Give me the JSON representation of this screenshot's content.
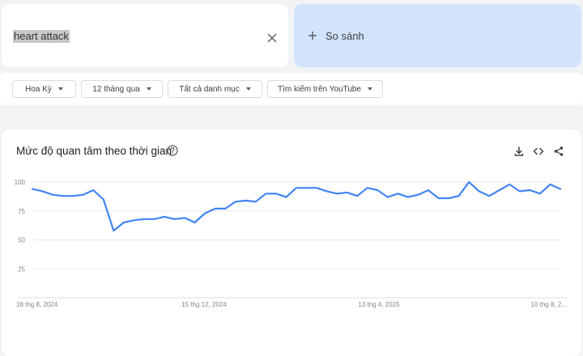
{
  "search": {
    "term": "heart attack"
  },
  "compare": {
    "label": "So sánh"
  },
  "filters": [
    {
      "label": "Hoa Kỳ"
    },
    {
      "label": "12 tháng qua"
    },
    {
      "label": "Tất cả danh mục"
    },
    {
      "label": "Tìm kiếm trên YouTube"
    }
  ],
  "chart_card": {
    "title": "Mức độ quan tâm theo thời gian",
    "icons": [
      "help-icon",
      "download-icon",
      "embed-code-icon",
      "share-icon"
    ]
  },
  "colors": {
    "series": "#4285f4",
    "compare_bg": "#d2e3fc"
  },
  "chart_data": {
    "type": "line",
    "title": "",
    "xlabel": "",
    "ylabel": "",
    "ylim": [
      0,
      100
    ],
    "y_ticks": [
      "100",
      "75",
      "50",
      "25"
    ],
    "x_tick_labels": [
      "18 thg 8, 2024",
      "15 thg 12, 2024",
      "13 thg 4, 2025",
      "10 thg 8, 2..."
    ],
    "grid": true,
    "legend": "none",
    "series": [
      {
        "values": [
          94,
          92,
          89,
          88,
          88,
          89,
          93,
          85,
          58,
          65,
          67,
          68,
          68,
          70,
          68,
          69,
          65,
          73,
          77,
          77,
          83,
          84,
          83,
          90,
          90,
          87,
          95,
          95,
          95,
          92,
          90,
          91,
          88,
          95,
          93,
          87,
          90,
          87,
          89,
          93,
          86,
          86,
          88,
          100,
          92,
          88,
          93,
          98,
          92,
          93,
          90,
          98,
          94
        ]
      }
    ]
  }
}
